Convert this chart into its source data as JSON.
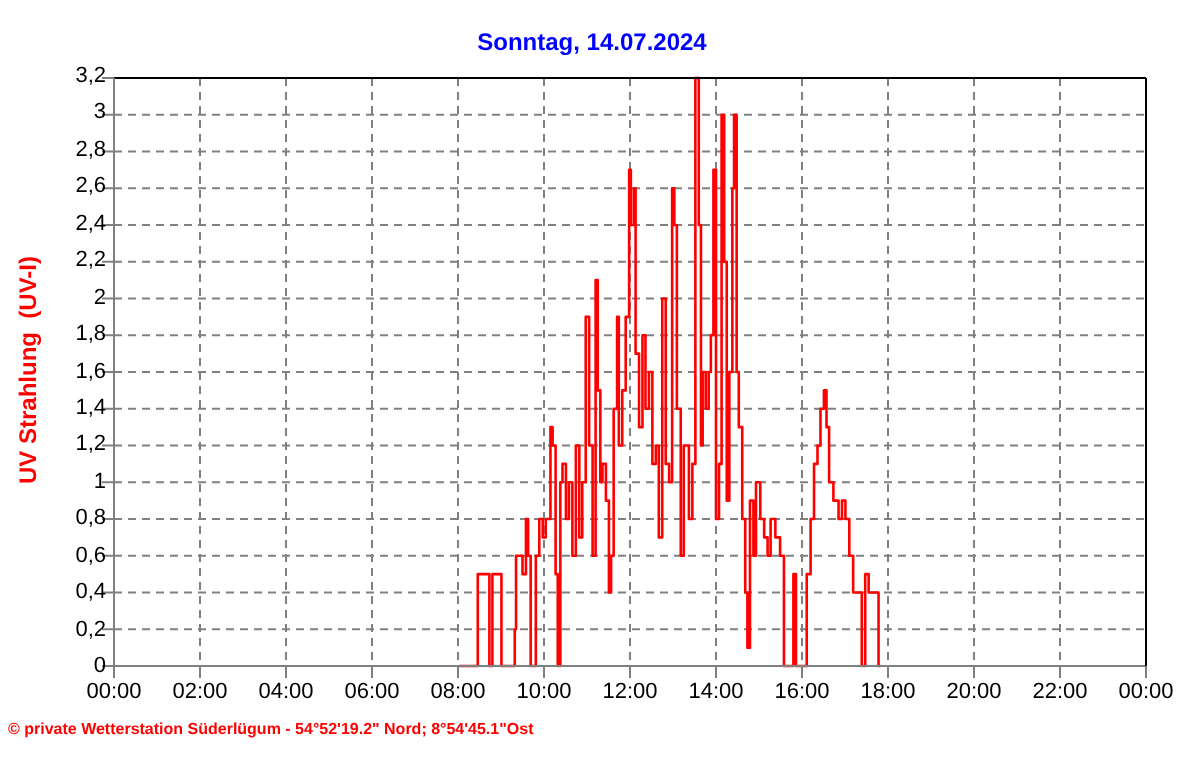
{
  "chart_data": {
    "type": "step",
    "title": "Sonntag, 14.07.2024",
    "ylabel": "UV Strahlung  (UV-I)",
    "annotations": [
      "© private Wetterstation Süderlügum - 54°52'19.2\" Nord; 8°54'45.1\"Ost"
    ],
    "xlim": [
      0,
      24
    ],
    "xticks": [
      {
        "value": 0,
        "label": "00:00"
      },
      {
        "value": 2,
        "label": "02:00"
      },
      {
        "value": 4,
        "label": "04:00"
      },
      {
        "value": 6,
        "label": "06:00"
      },
      {
        "value": 8,
        "label": "08:00"
      },
      {
        "value": 10,
        "label": "10:00"
      },
      {
        "value": 12,
        "label": "12:00"
      },
      {
        "value": 14,
        "label": "14:00"
      },
      {
        "value": 16,
        "label": "16:00"
      },
      {
        "value": 18,
        "label": "18:00"
      },
      {
        "value": 20,
        "label": "20:00"
      },
      {
        "value": 22,
        "label": "22:00"
      },
      {
        "value": 24,
        "label": "00:00"
      }
    ],
    "ylim": [
      0,
      3.2
    ],
    "yticks": [
      0,
      {
        "value": 0.2,
        "label": "0,2"
      },
      {
        "value": 0.4,
        "label": "0,4"
      },
      {
        "value": 0.6,
        "label": "0,6"
      },
      {
        "value": 0.8,
        "label": "0,8"
      },
      1,
      {
        "value": 1.2,
        "label": "1,2"
      },
      {
        "value": 1.4,
        "label": "1,4"
      },
      {
        "value": 1.6,
        "label": "1,6"
      },
      {
        "value": 1.8,
        "label": "1,8"
      },
      2,
      {
        "value": 2.2,
        "label": "2,2"
      },
      {
        "value": 2.4,
        "label": "2,4"
      },
      {
        "value": 2.6,
        "label": "2,6"
      },
      {
        "value": 2.8,
        "label": "2,8"
      },
      3,
      {
        "value": 3.2,
        "label": "3,2"
      }
    ],
    "grid": true,
    "marker": "none",
    "line_style": "solid",
    "series": [
      {
        "color": "#ff0000",
        "x": [
          8.03,
          8.46,
          8.73,
          8.8,
          9.01,
          9.32,
          9.35,
          9.5,
          9.58,
          9.63,
          9.69,
          9.81,
          9.89,
          9.97,
          10.04,
          10.15,
          10.2,
          10.27,
          10.32,
          10.38,
          10.43,
          10.51,
          10.58,
          10.66,
          10.74,
          10.82,
          10.89,
          10.97,
          11.05,
          11.13,
          11.2,
          11.25,
          11.31,
          11.36,
          11.44,
          11.51,
          11.56,
          11.62,
          11.7,
          11.74,
          11.82,
          11.9,
          11.98,
          12.02,
          12.09,
          12.13,
          12.21,
          12.29,
          12.36,
          12.44,
          12.52,
          12.6,
          12.67,
          12.75,
          12.83,
          12.91,
          12.98,
          13.03,
          13.09,
          13.18,
          13.25,
          13.37,
          13.45,
          13.52,
          13.6,
          13.65,
          13.69,
          13.76,
          13.83,
          13.88,
          13.94,
          14,
          14.07,
          14.13,
          14.19,
          14.25,
          14.31,
          14.38,
          14.42,
          14.48,
          14.53,
          14.61,
          14.68,
          14.73,
          14.79,
          14.87,
          14.93,
          15.03,
          15.12,
          15.2,
          15.27,
          15.38,
          15.49,
          15.58,
          15.8,
          15.86,
          16.11,
          16.2,
          16.28,
          16.36,
          16.43,
          16.51,
          16.57,
          16.63,
          16.73,
          16.85,
          16.93,
          17.01,
          17.1,
          17.19,
          17.39,
          17.47,
          17.55,
          17.78,
          17.83
        ],
        "values": [
          0,
          0.5,
          0,
          0.5,
          0,
          0.2,
          0.6,
          0.5,
          0.8,
          0.6,
          0,
          0.6,
          0.8,
          0.7,
          0.8,
          1.3,
          1.2,
          0.5,
          0,
          1,
          1.1,
          0.8,
          1,
          0.6,
          1.2,
          0.7,
          1,
          1.9,
          1.2,
          0.6,
          2.1,
          1.5,
          1,
          1.1,
          0.9,
          0.4,
          0.6,
          1.4,
          1.9,
          1.2,
          1.5,
          1.9,
          2.7,
          2.4,
          2.6,
          1.7,
          1.3,
          1.8,
          1.4,
          1.6,
          1.1,
          1.2,
          0.7,
          2,
          1.1,
          1,
          2.6,
          2.4,
          1.4,
          0.6,
          1.2,
          0.8,
          1.1,
          3.2,
          2.4,
          1.2,
          1.6,
          1.4,
          1.6,
          1.8,
          2.7,
          0.8,
          1.1,
          3,
          2.2,
          0.9,
          1.6,
          2.6,
          3,
          1.6,
          1.3,
          0.8,
          0.4,
          0.1,
          0.9,
          0.6,
          1,
          0.8,
          0.7,
          0.6,
          0.8,
          0.7,
          0.6,
          0,
          0.5,
          0,
          0.5,
          0.8,
          1.1,
          1.2,
          1.4,
          1.5,
          1.3,
          1,
          0.9,
          0.8,
          0.9,
          0.8,
          0.6,
          0.4,
          0,
          0.5,
          0.4,
          0,
          0
        ]
      }
    ]
  }
}
